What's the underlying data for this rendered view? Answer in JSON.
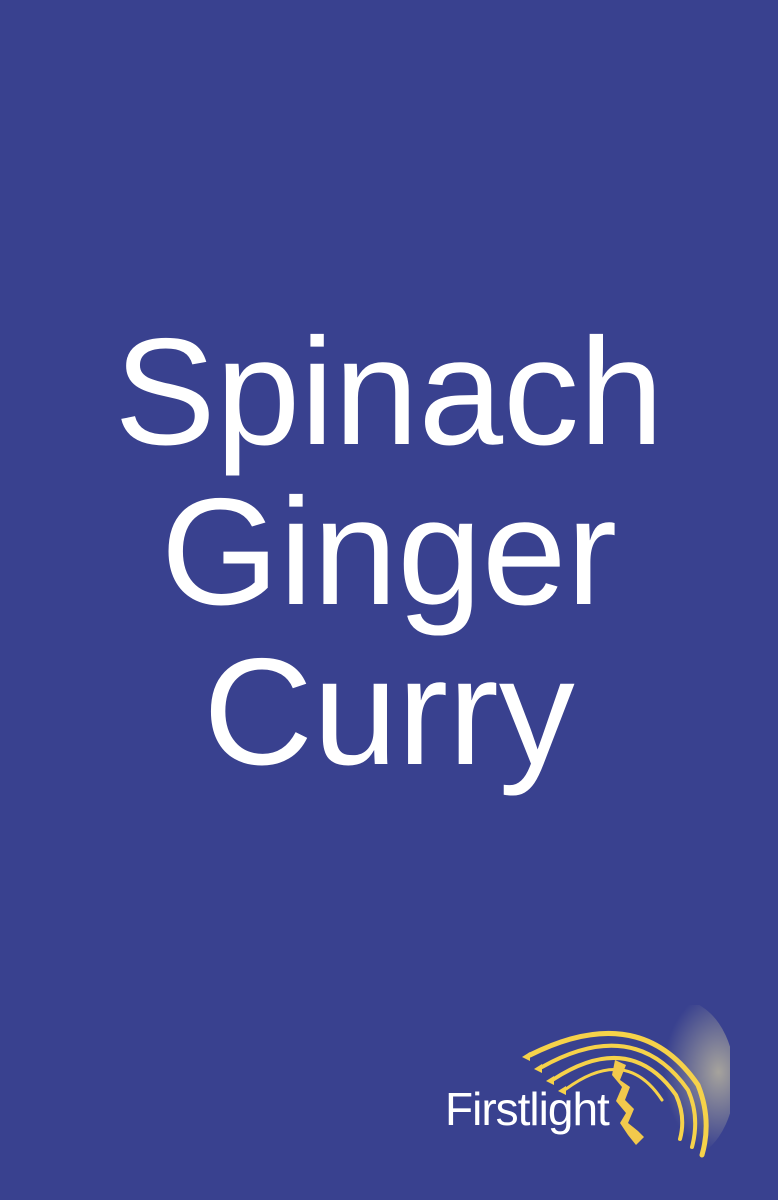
{
  "cover": {
    "background_color": "#39418f",
    "title_lines": [
      "Spinach",
      "Ginger",
      "Curry"
    ]
  },
  "logo": {
    "brand_name": "Firstlight",
    "accent_color": "#f2c94c",
    "icon": "comet-swoosh-icon"
  }
}
